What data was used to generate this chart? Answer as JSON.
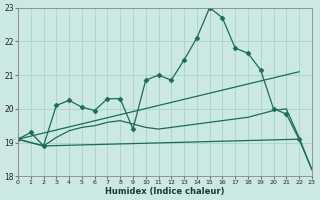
{
  "xlabel": "Humidex (Indice chaleur)",
  "background_color": "#cce8e2",
  "grid_color": "#a8d4cc",
  "line_color": "#1a6b5a",
  "xlim": [
    0,
    23
  ],
  "ylim": [
    18,
    23
  ],
  "yticks": [
    18,
    19,
    20,
    21,
    22,
    23
  ],
  "xticks": [
    0,
    1,
    2,
    3,
    4,
    5,
    6,
    7,
    8,
    9,
    10,
    11,
    12,
    13,
    14,
    15,
    16,
    17,
    18,
    19,
    20,
    21,
    22,
    23
  ],
  "line1": {
    "x": [
      0,
      1,
      2,
      3,
      4,
      5,
      6,
      7,
      8,
      9,
      10,
      11,
      12,
      13,
      14,
      15,
      16,
      17,
      18,
      19,
      20,
      21,
      22
    ],
    "y": [
      19.1,
      19.3,
      18.9,
      20.1,
      20.25,
      20.05,
      19.95,
      20.3,
      20.3,
      19.4,
      20.85,
      21.0,
      20.85,
      21.45,
      22.1,
      23.0,
      22.7,
      21.8,
      21.65,
      21.15,
      20.0,
      19.85,
      19.1
    ]
  },
  "line2": {
    "x": [
      0,
      22
    ],
    "y": [
      19.1,
      21.1
    ]
  },
  "line3": {
    "x": [
      0,
      2,
      22,
      23
    ],
    "y": [
      19.1,
      18.9,
      19.1,
      18.2
    ]
  },
  "line4": {
    "x": [
      0,
      2,
      3,
      4,
      5,
      6,
      7,
      8,
      9,
      10,
      11,
      12,
      13,
      14,
      15,
      16,
      17,
      18,
      19,
      20,
      21,
      22,
      23
    ],
    "y": [
      19.1,
      18.9,
      19.15,
      19.35,
      19.45,
      19.5,
      19.6,
      19.65,
      19.55,
      19.45,
      19.4,
      19.45,
      19.5,
      19.55,
      19.6,
      19.65,
      19.7,
      19.75,
      19.85,
      19.95,
      20.0,
      19.15,
      18.2
    ]
  }
}
